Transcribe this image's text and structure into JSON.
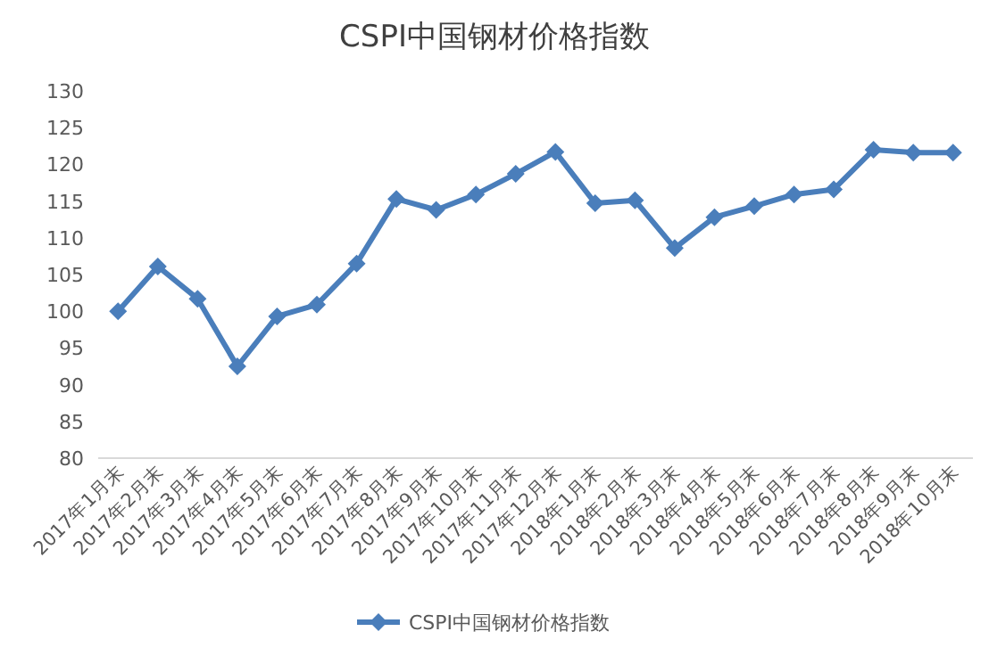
{
  "chart_data": {
    "type": "line",
    "title": "CSPI中国钢材价格指数",
    "categories": [
      "2017年1月末",
      "2017年2月末",
      "2017年3月末",
      "2017年4月末",
      "2017年5月末",
      "2017年6月末",
      "2017年7月末",
      "2017年8月末",
      "2017年9月末",
      "2017年10月末",
      "2017年11月末",
      "2017年12月末",
      "2018年1月末",
      "2018年2月末",
      "2018年3月末",
      "2018年4月末",
      "2018年5月末",
      "2018年6月末",
      "2018年7月末",
      "2018年8月末",
      "2018年9月末",
      "2018年10月末"
    ],
    "series": [
      {
        "name": "CSPI中国钢材价格指数",
        "color": "#4a7ebb",
        "values": [
          100,
          106.1,
          101.7,
          92.5,
          99.3,
          100.9,
          106.5,
          115.3,
          113.8,
          115.9,
          118.7,
          121.7,
          114.7,
          115.1,
          108.6,
          112.8,
          114.3,
          115.9,
          116.6,
          122.0,
          121.6,
          121.6
        ]
      }
    ],
    "ylim": [
      80,
      130
    ],
    "yticks": [
      80,
      85,
      90,
      95,
      100,
      105,
      110,
      115,
      120,
      125,
      130
    ],
    "grid": false,
    "legend": "bottom",
    "marker": "diamond",
    "line_style": "solid"
  }
}
